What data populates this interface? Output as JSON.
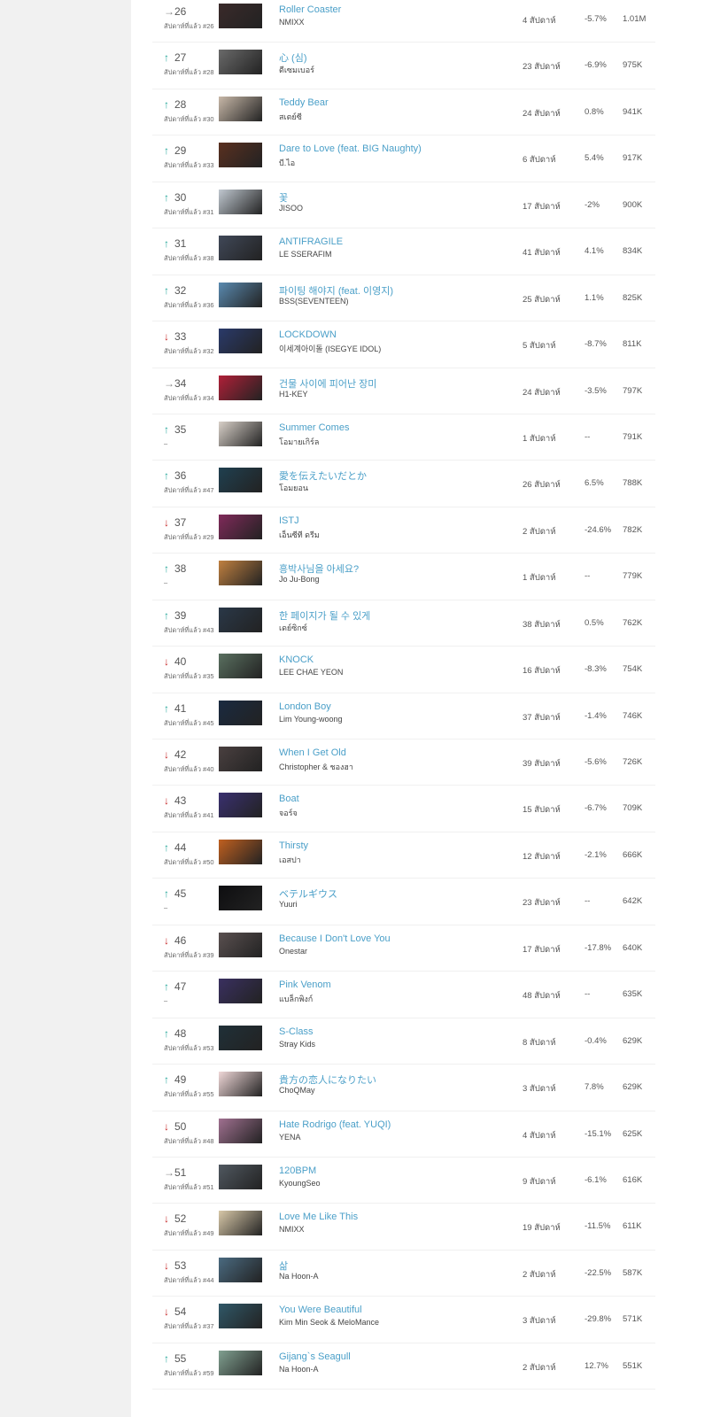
{
  "chart": {
    "last_week_prefix": "สัปดาห์ที่แล้ว #",
    "weeks_suffix": " สัปดาห์",
    "rows": [
      {
        "rank": "26",
        "trend": "same",
        "last_week": "26",
        "title": "Roller Coaster",
        "artist": "NMIXX",
        "weeks": "4",
        "change": "-5.7%",
        "views": "1.01M"
      },
      {
        "rank": "27",
        "trend": "up",
        "last_week": "28",
        "title": "心 (심)",
        "artist": "ดีเซมเบอร์",
        "weeks": "23",
        "change": "-6.9%",
        "views": "975K"
      },
      {
        "rank": "28",
        "trend": "up",
        "last_week": "30",
        "title": "Teddy Bear",
        "artist": "สเตย์ซี",
        "weeks": "24",
        "change": "0.8%",
        "views": "941K"
      },
      {
        "rank": "29",
        "trend": "up",
        "last_week": "33",
        "title": "Dare to Love (feat. BIG Naughty)",
        "artist": "บี.ไอ",
        "weeks": "6",
        "change": "5.4%",
        "views": "917K"
      },
      {
        "rank": "30",
        "trend": "up",
        "last_week": "31",
        "title": "꽃",
        "artist": "JISOO",
        "weeks": "17",
        "change": "-2%",
        "views": "900K"
      },
      {
        "rank": "31",
        "trend": "up",
        "last_week": "38",
        "title": "ANTIFRAGILE",
        "artist": "LE SSERAFIM",
        "weeks": "41",
        "change": "4.1%",
        "views": "834K"
      },
      {
        "rank": "32",
        "trend": "up",
        "last_week": "36",
        "title": "파이팅 해야지 (feat. 이영지)",
        "artist": "BSS(SEVENTEEN)",
        "weeks": "25",
        "change": "1.1%",
        "views": "825K"
      },
      {
        "rank": "33",
        "trend": "down",
        "last_week": "32",
        "title": "LOCKDOWN",
        "artist": "이세계아이돌 (ISEGYE IDOL)",
        "weeks": "5",
        "change": "-8.7%",
        "views": "811K"
      },
      {
        "rank": "34",
        "trend": "same",
        "last_week": "34",
        "title": "건물 사이에 피어난 장미",
        "artist": "H1-KEY",
        "weeks": "24",
        "change": "-3.5%",
        "views": "797K"
      },
      {
        "rank": "35",
        "trend": "up",
        "last_week": "",
        "title": "Summer Comes",
        "artist": "โอมายเกิร์ล",
        "weeks": "1",
        "change": "--",
        "views": "791K"
      },
      {
        "rank": "36",
        "trend": "up",
        "last_week": "47",
        "title": "愛を伝えたいだとか",
        "artist": "โอมยอน",
        "weeks": "26",
        "change": "6.5%",
        "views": "788K"
      },
      {
        "rank": "37",
        "trend": "down",
        "last_week": "29",
        "title": "ISTJ",
        "artist": "เอ็นซีที ดรีม",
        "weeks": "2",
        "change": "-24.6%",
        "views": "782K"
      },
      {
        "rank": "38",
        "trend": "up",
        "last_week": "",
        "title": "흥박사님을 아세요?",
        "artist": "Jo Ju-Bong",
        "weeks": "1",
        "change": "--",
        "views": "779K"
      },
      {
        "rank": "39",
        "trend": "up",
        "last_week": "43",
        "title": "한 페이지가 될 수 있게",
        "artist": "เดย์ซิกซ์",
        "weeks": "38",
        "change": "0.5%",
        "views": "762K"
      },
      {
        "rank": "40",
        "trend": "down",
        "last_week": "35",
        "title": "KNOCK",
        "artist": "LEE CHAE YEON",
        "weeks": "16",
        "change": "-8.3%",
        "views": "754K"
      },
      {
        "rank": "41",
        "trend": "up",
        "last_week": "45",
        "title": "London Boy",
        "artist": "Lim Young-woong",
        "weeks": "37",
        "change": "-1.4%",
        "views": "746K"
      },
      {
        "rank": "42",
        "trend": "down",
        "last_week": "40",
        "title": "When I Get Old",
        "artist": "Christopher & ชองฮา",
        "weeks": "39",
        "change": "-5.6%",
        "views": "726K"
      },
      {
        "rank": "43",
        "trend": "down",
        "last_week": "41",
        "title": "Boat",
        "artist": "จอร์จ",
        "weeks": "15",
        "change": "-6.7%",
        "views": "709K"
      },
      {
        "rank": "44",
        "trend": "up",
        "last_week": "50",
        "title": "Thirsty",
        "artist": "เอสปา",
        "weeks": "12",
        "change": "-2.1%",
        "views": "666K"
      },
      {
        "rank": "45",
        "trend": "up",
        "last_week": "",
        "title": "ベテルギウス",
        "artist": "Yuuri",
        "weeks": "23",
        "change": "--",
        "views": "642K"
      },
      {
        "rank": "46",
        "trend": "down",
        "last_week": "39",
        "title": "Because I Don't Love You",
        "artist": "Onestar",
        "weeks": "17",
        "change": "-17.8%",
        "views": "640K"
      },
      {
        "rank": "47",
        "trend": "up",
        "last_week": "",
        "title": "Pink Venom",
        "artist": "แบล็กพิงก์",
        "weeks": "48",
        "change": "--",
        "views": "635K"
      },
      {
        "rank": "48",
        "trend": "up",
        "last_week": "53",
        "title": "S-Class",
        "artist": "Stray Kids",
        "weeks": "8",
        "change": "-0.4%",
        "views": "629K"
      },
      {
        "rank": "49",
        "trend": "up",
        "last_week": "55",
        "title": "貴方の恋人になりたい",
        "artist": "ChoQMay",
        "weeks": "3",
        "change": "7.8%",
        "views": "629K"
      },
      {
        "rank": "50",
        "trend": "down",
        "last_week": "48",
        "title": "Hate Rodrigo (feat. YUQI)",
        "artist": "YENA",
        "weeks": "4",
        "change": "-15.1%",
        "views": "625K"
      },
      {
        "rank": "51",
        "trend": "same",
        "last_week": "51",
        "title": "120BPM",
        "artist": "KyoungSeo",
        "weeks": "9",
        "change": "-6.1%",
        "views": "616K"
      },
      {
        "rank": "52",
        "trend": "down",
        "last_week": "49",
        "title": "Love Me Like This",
        "artist": "NMIXX",
        "weeks": "19",
        "change": "-11.5%",
        "views": "611K"
      },
      {
        "rank": "53",
        "trend": "down",
        "last_week": "44",
        "title": "삶",
        "artist": "Na Hoon-A",
        "weeks": "2",
        "change": "-22.5%",
        "views": "587K"
      },
      {
        "rank": "54",
        "trend": "down",
        "last_week": "37",
        "title": "You Were Beautiful",
        "artist": "Kim Min Seok & MeloMance",
        "weeks": "3",
        "change": "-29.8%",
        "views": "571K"
      },
      {
        "rank": "55",
        "trend": "up",
        "last_week": "59",
        "title": "Gijang`s Seagull",
        "artist": "Na Hoon-A",
        "weeks": "2",
        "change": "12.7%",
        "views": "551K"
      }
    ]
  },
  "colors": {
    "title_link": "#4a9fc8",
    "trend_up": "#26a69a",
    "trend_down": "#c62828",
    "sidebar_bg": "#f1f1f1"
  }
}
